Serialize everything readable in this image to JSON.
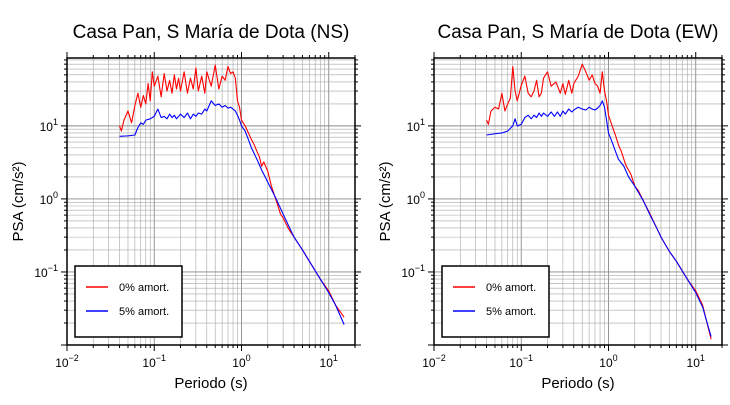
{
  "chart_data": [
    {
      "type": "line",
      "title": "Casa Pan, S María de Dota (NS)",
      "xlabel": "Periodo (s)",
      "ylabel": "PSA (cm/s²)",
      "xscale": "log",
      "yscale": "log",
      "xlim": [
        0.01,
        20
      ],
      "ylim": [
        0.01,
        85
      ],
      "grid": true,
      "legend_position": "bottom-left",
      "x_ticks": [
        {
          "value": 0.01,
          "base": "10",
          "exp": "−2"
        },
        {
          "value": 0.1,
          "base": "10",
          "exp": "−1"
        },
        {
          "value": 1,
          "base": "10",
          "exp": "0"
        },
        {
          "value": 10,
          "base": "10",
          "exp": "1"
        }
      ],
      "y_ticks": [
        {
          "value": 0.1,
          "base": "10",
          "exp": "−1"
        },
        {
          "value": 1,
          "base": "10",
          "exp": "0"
        },
        {
          "value": 10,
          "base": "10",
          "exp": "1"
        }
      ],
      "series": [
        {
          "name": "0% amort.",
          "color": "#ff0000",
          "points": [
            [
              0.04,
              10
            ],
            [
              0.042,
              8.5
            ],
            [
              0.045,
              12
            ],
            [
              0.05,
              16
            ],
            [
              0.055,
              11
            ],
            [
              0.06,
              19
            ],
            [
              0.065,
              28
            ],
            [
              0.07,
              18
            ],
            [
              0.075,
              26
            ],
            [
              0.08,
              20
            ],
            [
              0.085,
              38
            ],
            [
              0.09,
              22
            ],
            [
              0.095,
              55
            ],
            [
              0.1,
              35
            ],
            [
              0.11,
              48
            ],
            [
              0.12,
              25
            ],
            [
              0.13,
              52
            ],
            [
              0.14,
              30
            ],
            [
              0.15,
              42
            ],
            [
              0.16,
              28
            ],
            [
              0.17,
              50
            ],
            [
              0.18,
              32
            ],
            [
              0.19,
              45
            ],
            [
              0.2,
              30
            ],
            [
              0.22,
              55
            ],
            [
              0.24,
              28
            ],
            [
              0.26,
              45
            ],
            [
              0.28,
              32
            ],
            [
              0.3,
              62
            ],
            [
              0.32,
              30
            ],
            [
              0.35,
              48
            ],
            [
              0.38,
              28
            ],
            [
              0.4,
              55
            ],
            [
              0.45,
              35
            ],
            [
              0.5,
              68
            ],
            [
              0.55,
              32
            ],
            [
              0.6,
              48
            ],
            [
              0.65,
              42
            ],
            [
              0.7,
              65
            ],
            [
              0.75,
              52
            ],
            [
              0.8,
              55
            ],
            [
              0.85,
              45
            ],
            [
              0.9,
              22
            ],
            [
              0.95,
              18
            ],
            [
              1.0,
              12
            ],
            [
              1.1,
              10
            ],
            [
              1.2,
              8
            ],
            [
              1.3,
              6.5
            ],
            [
              1.4,
              5.5
            ],
            [
              1.5,
              4.5
            ],
            [
              1.6,
              3.8
            ],
            [
              1.7,
              2.8
            ],
            [
              1.8,
              3.2
            ],
            [
              2.0,
              2.4
            ],
            [
              2.2,
              1.5
            ],
            [
              2.5,
              0.95
            ],
            [
              2.8,
              0.62
            ],
            [
              3.0,
              0.55
            ],
            [
              3.5,
              0.38
            ],
            [
              4.0,
              0.3
            ],
            [
              5.0,
              0.2
            ],
            [
              6.0,
              0.14
            ],
            [
              8.0,
              0.08
            ],
            [
              10.0,
              0.055
            ],
            [
              12.0,
              0.035
            ],
            [
              15.0,
              0.024
            ]
          ]
        },
        {
          "name": "5% amort.",
          "color": "#0000ff",
          "points": [
            [
              0.04,
              7.2
            ],
            [
              0.05,
              7.3
            ],
            [
              0.06,
              7.5
            ],
            [
              0.065,
              9.5
            ],
            [
              0.07,
              11
            ],
            [
              0.075,
              10.5
            ],
            [
              0.08,
              12
            ],
            [
              0.09,
              12.5
            ],
            [
              0.1,
              13.5
            ],
            [
              0.11,
              17
            ],
            [
              0.12,
              13
            ],
            [
              0.13,
              13.5
            ],
            [
              0.14,
              12.5
            ],
            [
              0.15,
              14.5
            ],
            [
              0.16,
              13
            ],
            [
              0.17,
              14
            ],
            [
              0.18,
              12.5
            ],
            [
              0.2,
              14.5
            ],
            [
              0.22,
              13
            ],
            [
              0.24,
              15
            ],
            [
              0.26,
              12.5
            ],
            [
              0.28,
              14.5
            ],
            [
              0.3,
              13.5
            ],
            [
              0.32,
              15
            ],
            [
              0.35,
              14.5
            ],
            [
              0.38,
              17
            ],
            [
              0.4,
              16
            ],
            [
              0.45,
              22
            ],
            [
              0.5,
              19
            ],
            [
              0.55,
              20
            ],
            [
              0.6,
              18
            ],
            [
              0.65,
              19
            ],
            [
              0.7,
              17.5
            ],
            [
              0.75,
              18
            ],
            [
              0.8,
              17
            ],
            [
              0.85,
              16
            ],
            [
              0.9,
              14
            ],
            [
              0.95,
              12
            ],
            [
              1.0,
              10
            ],
            [
              1.1,
              8.5
            ],
            [
              1.2,
              6.5
            ],
            [
              1.3,
              5
            ],
            [
              1.5,
              3.5
            ],
            [
              1.7,
              2.5
            ],
            [
              2.0,
              1.7
            ],
            [
              2.5,
              1.0
            ],
            [
              3.0,
              0.62
            ],
            [
              3.5,
              0.42
            ],
            [
              4.0,
              0.3
            ],
            [
              5.0,
              0.2
            ],
            [
              6.0,
              0.14
            ],
            [
              8.0,
              0.08
            ],
            [
              10.0,
              0.052
            ],
            [
              12.0,
              0.035
            ],
            [
              15.0,
              0.019
            ]
          ]
        }
      ]
    },
    {
      "type": "line",
      "title": "Casa Pan, S María de Dota (EW)",
      "xlabel": "Periodo (s)",
      "ylabel": "PSA (cm/s²)",
      "xscale": "log",
      "yscale": "log",
      "xlim": [
        0.01,
        20
      ],
      "ylim": [
        0.01,
        85
      ],
      "grid": true,
      "legend_position": "bottom-left",
      "x_ticks": [
        {
          "value": 0.01,
          "base": "10",
          "exp": "−2"
        },
        {
          "value": 0.1,
          "base": "10",
          "exp": "−1"
        },
        {
          "value": 1,
          "base": "10",
          "exp": "0"
        },
        {
          "value": 10,
          "base": "10",
          "exp": "1"
        }
      ],
      "y_ticks": [
        {
          "value": 0.1,
          "base": "10",
          "exp": "−1"
        },
        {
          "value": 1,
          "base": "10",
          "exp": "0"
        },
        {
          "value": 10,
          "base": "10",
          "exp": "1"
        }
      ],
      "series": [
        {
          "name": "0% amort.",
          "color": "#ff0000",
          "points": [
            [
              0.04,
              12
            ],
            [
              0.042,
              10.5
            ],
            [
              0.045,
              16
            ],
            [
              0.05,
              18
            ],
            [
              0.055,
              17
            ],
            [
              0.06,
              28
            ],
            [
              0.065,
              16
            ],
            [
              0.07,
              20
            ],
            [
              0.075,
              24
            ],
            [
              0.08,
              65
            ],
            [
              0.085,
              30
            ],
            [
              0.09,
              22
            ],
            [
              0.1,
              36
            ],
            [
              0.11,
              48
            ],
            [
              0.12,
              28
            ],
            [
              0.13,
              25
            ],
            [
              0.14,
              30
            ],
            [
              0.15,
              42
            ],
            [
              0.16,
              25
            ],
            [
              0.17,
              28
            ],
            [
              0.18,
              45
            ],
            [
              0.2,
              55
            ],
            [
              0.22,
              35
            ],
            [
              0.25,
              40
            ],
            [
              0.28,
              28
            ],
            [
              0.3,
              38
            ],
            [
              0.32,
              27
            ],
            [
              0.35,
              42
            ],
            [
              0.38,
              28
            ],
            [
              0.4,
              38
            ],
            [
              0.45,
              48
            ],
            [
              0.5,
              70
            ],
            [
              0.55,
              55
            ],
            [
              0.6,
              42
            ],
            [
              0.65,
              50
            ],
            [
              0.7,
              38
            ],
            [
              0.75,
              35
            ],
            [
              0.8,
              28
            ],
            [
              0.85,
              55
            ],
            [
              0.9,
              30
            ],
            [
              0.95,
              22
            ],
            [
              1.0,
              14
            ],
            [
              1.1,
              10
            ],
            [
              1.2,
              7.5
            ],
            [
              1.3,
              5.5
            ],
            [
              1.4,
              4.5
            ],
            [
              1.5,
              3.5
            ],
            [
              1.6,
              2.8
            ],
            [
              1.8,
              2.2
            ],
            [
              2.0,
              1.5
            ],
            [
              2.2,
              1.3
            ],
            [
              2.5,
              0.95
            ],
            [
              3.0,
              0.62
            ],
            [
              3.5,
              0.42
            ],
            [
              4.0,
              0.3
            ],
            [
              5.0,
              0.19
            ],
            [
              6.0,
              0.14
            ],
            [
              8.0,
              0.08
            ],
            [
              10.0,
              0.055
            ],
            [
              12.0,
              0.035
            ],
            [
              15.0,
              0.012
            ]
          ]
        },
        {
          "name": "5% amort.",
          "color": "#0000ff",
          "points": [
            [
              0.04,
              7.5
            ],
            [
              0.05,
              7.8
            ],
            [
              0.06,
              8
            ],
            [
              0.07,
              8.5
            ],
            [
              0.08,
              10
            ],
            [
              0.085,
              12.5
            ],
            [
              0.09,
              10
            ],
            [
              0.1,
              10.5
            ],
            [
              0.11,
              13
            ],
            [
              0.12,
              14
            ],
            [
              0.13,
              12.5
            ],
            [
              0.14,
              14
            ],
            [
              0.15,
              13
            ],
            [
              0.16,
              15
            ],
            [
              0.17,
              13.5
            ],
            [
              0.18,
              15
            ],
            [
              0.2,
              13.5
            ],
            [
              0.22,
              15.5
            ],
            [
              0.24,
              13.5
            ],
            [
              0.26,
              15.5
            ],
            [
              0.28,
              13.5
            ],
            [
              0.3,
              16
            ],
            [
              0.32,
              14.5
            ],
            [
              0.35,
              17
            ],
            [
              0.38,
              15.5
            ],
            [
              0.4,
              16.5
            ],
            [
              0.45,
              18
            ],
            [
              0.5,
              17
            ],
            [
              0.55,
              16.5
            ],
            [
              0.6,
              18
            ],
            [
              0.65,
              17
            ],
            [
              0.7,
              16.5
            ],
            [
              0.75,
              17.5
            ],
            [
              0.8,
              19
            ],
            [
              0.85,
              22
            ],
            [
              0.9,
              18
            ],
            [
              0.95,
              12
            ],
            [
              1.0,
              8
            ],
            [
              1.1,
              6
            ],
            [
              1.2,
              4.5
            ],
            [
              1.3,
              3.5
            ],
            [
              1.5,
              2.8
            ],
            [
              1.7,
              2.0
            ],
            [
              2.0,
              1.5
            ],
            [
              2.5,
              0.95
            ],
            [
              3.0,
              0.6
            ],
            [
              3.5,
              0.42
            ],
            [
              4.0,
              0.3
            ],
            [
              5.0,
              0.19
            ],
            [
              6.0,
              0.14
            ],
            [
              8.0,
              0.08
            ],
            [
              10.0,
              0.052
            ],
            [
              12.0,
              0.033
            ],
            [
              15.0,
              0.013
            ]
          ]
        }
      ]
    }
  ]
}
